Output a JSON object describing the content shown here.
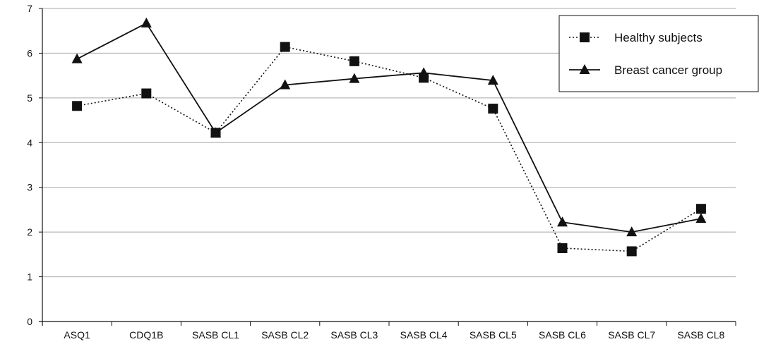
{
  "chart_data": {
    "type": "line",
    "categories": [
      "ASQ1",
      "CDQ1B",
      "SASB CL1",
      "SASB CL2",
      "SASB CL3",
      "SASB CL4",
      "SASB CL5",
      "SASB CL6",
      "SASB CL7",
      "SASB CL8"
    ],
    "series": [
      {
        "name": "Healthy subjects",
        "values": [
          4.82,
          5.1,
          4.22,
          6.14,
          5.82,
          5.45,
          4.76,
          1.64,
          1.57,
          2.52
        ],
        "line_style": "dotted",
        "marker": "square",
        "color": "#111111"
      },
      {
        "name": "Breast cancer group",
        "values": [
          5.87,
          6.67,
          4.22,
          5.29,
          5.43,
          5.56,
          5.39,
          2.22,
          2.0,
          2.3
        ],
        "line_style": "solid",
        "marker": "triangle",
        "color": "#111111"
      }
    ],
    "ylim": [
      0,
      7
    ],
    "yticks": [
      "0",
      "1",
      "2",
      "3",
      "4",
      "5",
      "6",
      "7"
    ],
    "grid": true,
    "legend_position": "top-right",
    "title": "",
    "xlabel": "",
    "ylabel": ""
  }
}
